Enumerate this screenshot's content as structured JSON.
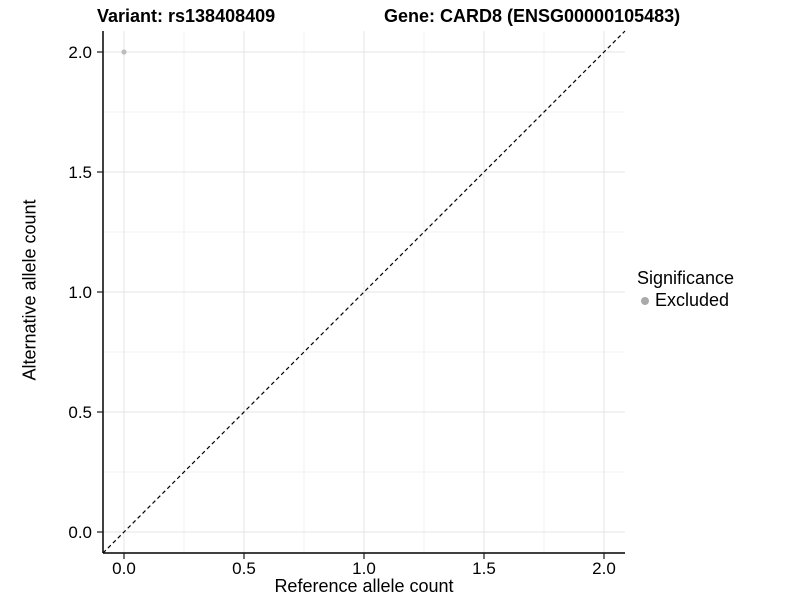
{
  "figure": {
    "background": "#ffffff"
  },
  "chart_data": {
    "type": "scatter",
    "title_left": "Variant: rs138408409",
    "title_right": "Gene: CARD8 (ENSG00000105483)",
    "xlabel": "Reference allele count",
    "ylabel": "Alternative allele count",
    "xlim": [
      -0.0875,
      2.0875
    ],
    "ylim": [
      -0.0875,
      2.0875
    ],
    "grid": true,
    "x_ticks": {
      "values": [
        0,
        0.5,
        1,
        1.5,
        2
      ],
      "labels": [
        "0.0",
        "0.5",
        "1.0",
        "1.5",
        "2.0"
      ]
    },
    "y_ticks": {
      "values": [
        0,
        0.5,
        1,
        1.5,
        2
      ],
      "labels": [
        "0.0",
        "0.5",
        "1.0",
        "1.5",
        "2.0"
      ]
    },
    "x_minor": [
      0.25,
      0.75,
      1.25,
      1.75
    ],
    "y_minor": [
      0.25,
      0.75,
      1.25,
      1.75
    ],
    "series": [
      {
        "name": "Excluded",
        "color": "#bdbdbd",
        "points": [
          {
            "x": 0.0,
            "y": 2.0
          }
        ]
      }
    ],
    "abline": {
      "slope": 1,
      "intercept": 0,
      "linetype": "dashed",
      "color": "#000000"
    },
    "legend": {
      "title": "Significance",
      "position": "right",
      "items": [
        {
          "label": "Excluded",
          "color": "#aaaaaa"
        }
      ]
    },
    "colors": {
      "grid_major": "#e4e4e4",
      "grid_minor": "#f2f2f2",
      "axis_line": "#000000",
      "tick_mark": "#1a1a1a",
      "text": "#000000"
    }
  }
}
